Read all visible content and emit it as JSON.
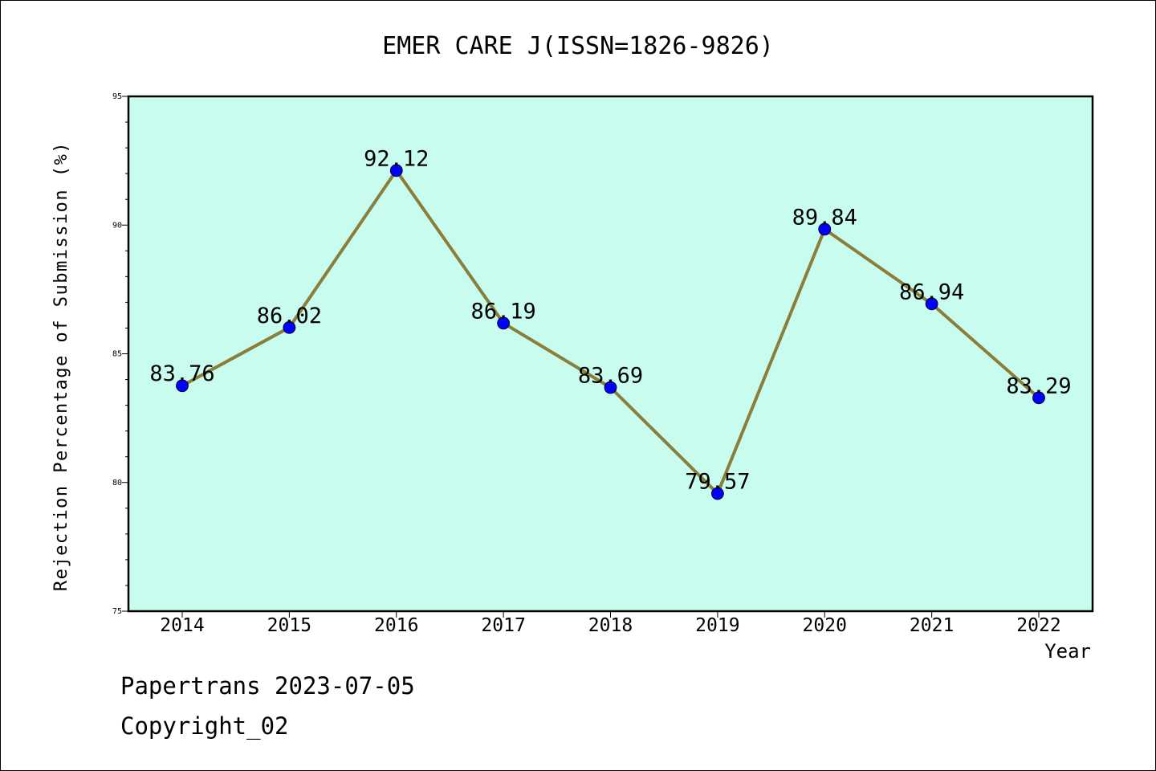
{
  "chart_data": {
    "type": "line",
    "title": "EMER CARE J(ISSN=1826-9826)",
    "xlabel": "Year",
    "ylabel": "Rejection Percentage of Submission (%)",
    "categories": [
      "2014",
      "2015",
      "2016",
      "2017",
      "2018",
      "2019",
      "2020",
      "2021",
      "2022"
    ],
    "values": [
      83.76,
      86.02,
      92.12,
      86.19,
      83.69,
      79.57,
      89.84,
      86.94,
      83.29
    ],
    "value_labels": [
      "83.76",
      "86.02",
      "92.12",
      "86.19",
      "83.69",
      "79.57",
      "89.84",
      "86.94",
      "83.29"
    ],
    "ylim": [
      75,
      95
    ],
    "yticks": [
      "75",
      "80",
      "85",
      "90",
      "95"
    ],
    "grid": false,
    "colors": {
      "plot_background": "#c8fcee",
      "line": "#8b7d3a",
      "marker": "#0000ff"
    }
  },
  "footer": {
    "line1": "Papertrans 2023-07-05",
    "line2": "Copyright_02"
  }
}
